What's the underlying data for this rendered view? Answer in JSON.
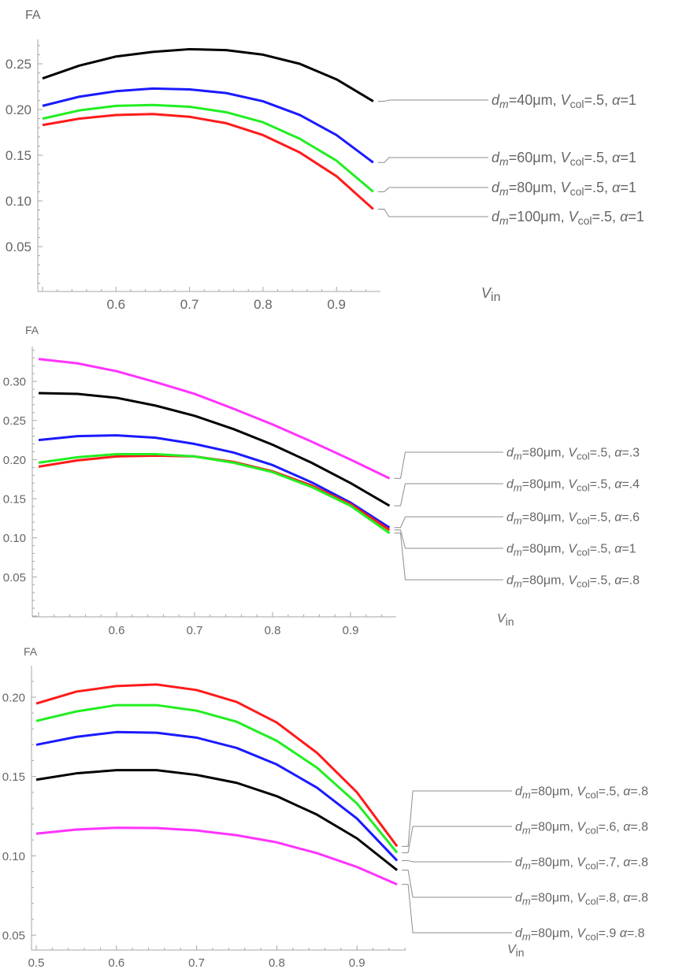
{
  "chart_data": [
    {
      "type": "line",
      "title": "",
      "xlabel": "V_in",
      "ylabel": "FA",
      "xlabel_parts": [
        "V",
        "in"
      ],
      "xlim": [
        0.494,
        0.96
      ],
      "ylim": [
        0.0,
        0.28
      ],
      "xticks": [
        0.6,
        0.7,
        0.8,
        0.9
      ],
      "yticks": [
        0.05,
        0.1,
        0.15,
        0.2,
        0.25
      ],
      "xtick_labels": [
        "0.6",
        "0.7",
        "0.8",
        "0.9"
      ],
      "ytick_labels": [
        "0.05",
        "0.10",
        "0.15",
        "0.20",
        "0.25"
      ],
      "grid": false,
      "legend_placement": "right (line-end labels)",
      "x": [
        0.5,
        0.55,
        0.6,
        0.65,
        0.7,
        0.75,
        0.8,
        0.85,
        0.9,
        0.95
      ],
      "series": [
        {
          "name": "d_m=40μm, V_col=.5, α=1",
          "color": "#000000",
          "label": [
            "d",
            "m",
            "=40μm, ",
            "V",
            "col",
            "=.5, ",
            "α",
            "=1"
          ],
          "values": [
            0.234,
            0.248,
            0.258,
            0.263,
            0.266,
            0.265,
            0.26,
            0.25,
            0.233,
            0.209
          ]
        },
        {
          "name": "d_m=60μm, V_col=.5, α=1",
          "color": "#1a1aff",
          "label": [
            "d",
            "m",
            "=60μm, ",
            "V",
            "col",
            "=.5, ",
            "α",
            "=1"
          ],
          "values": [
            0.204,
            0.214,
            0.22,
            0.223,
            0.222,
            0.218,
            0.209,
            0.194,
            0.172,
            0.142
          ]
        },
        {
          "name": "d_m=80μm, V_col=.5, α=1",
          "color": "#22ee22",
          "label": [
            "d",
            "m",
            "=80μm, ",
            "V",
            "col",
            "=.5, ",
            "α",
            "=1"
          ],
          "values": [
            0.19,
            0.199,
            0.204,
            0.205,
            0.203,
            0.197,
            0.186,
            0.168,
            0.144,
            0.11
          ]
        },
        {
          "name": "d_m=100μm, V_col=.5, α=1",
          "color": "#ff1a1a",
          "label": [
            "d",
            "m",
            "=100μm, ",
            "V",
            "col",
            "=.5, ",
            "α",
            "=1"
          ],
          "values": [
            0.183,
            0.19,
            0.194,
            0.195,
            0.192,
            0.185,
            0.172,
            0.153,
            0.127,
            0.091
          ]
        }
      ]
    },
    {
      "type": "line",
      "title": "",
      "xlabel": "V_in",
      "ylabel": "FA",
      "xlabel_parts": [
        "V",
        "in"
      ],
      "xlim": [
        0.492,
        0.955
      ],
      "ylim": [
        0.0,
        0.345
      ],
      "xticks": [
        0.6,
        0.7,
        0.8,
        0.9
      ],
      "yticks": [
        0.05,
        0.1,
        0.15,
        0.2,
        0.25,
        0.3
      ],
      "xtick_labels": [
        "0.6",
        "0.7",
        "0.8",
        "0.9"
      ],
      "ytick_labels": [
        "0.05",
        "0.10",
        "0.15",
        "0.20",
        "0.25",
        "0.30"
      ],
      "grid": false,
      "legend_placement": "right (line-end labels)",
      "x": [
        0.5,
        0.55,
        0.6,
        0.65,
        0.7,
        0.75,
        0.8,
        0.85,
        0.9,
        0.95
      ],
      "series": [
        {
          "name": "d_m=80μm, V_col=.5, α=.3",
          "color": "#ff33ff",
          "label": [
            "d",
            "m",
            "=80μm, ",
            "V",
            "col",
            "=.5, ",
            "α",
            "=.3"
          ],
          "values": [
            0.3285,
            0.323,
            0.313,
            0.299,
            0.284,
            0.265,
            0.245,
            0.223,
            0.2,
            0.176
          ]
        },
        {
          "name": "d_m=80μm, V_col=.5, α=.4",
          "color": "#000000",
          "label": [
            "d",
            "m",
            "=80μm, ",
            "V",
            "col",
            "=.5, ",
            "α",
            "=.4"
          ],
          "values": [
            0.285,
            0.284,
            0.279,
            0.269,
            0.256,
            0.239,
            0.219,
            0.196,
            0.17,
            0.141
          ]
        },
        {
          "name": "d_m=80μm, V_col=.5, α=.6",
          "color": "#1a1aff",
          "label": [
            "d",
            "m",
            "=80μm, ",
            "V",
            "col",
            "=.5, ",
            "α",
            "=.6"
          ],
          "values": [
            0.225,
            0.23,
            0.231,
            0.228,
            0.22,
            0.209,
            0.193,
            0.171,
            0.145,
            0.113
          ]
        },
        {
          "name": "d_m=80μm, V_col=.5, α=1",
          "color": "#ff1a1a",
          "label": [
            "d",
            "m",
            "=80μm, ",
            "V",
            "col",
            "=.5, ",
            "α",
            "=1"
          ],
          "values": [
            0.191,
            0.199,
            0.204,
            0.205,
            0.204,
            0.197,
            0.185,
            0.167,
            0.143,
            0.11
          ]
        },
        {
          "name": "d_m=80μm, V_col=.5, α=.8",
          "color": "#22ee22",
          "label": [
            "d",
            "m",
            "=80μm, ",
            "V",
            "col",
            "=.5, ",
            "α",
            "=.8"
          ],
          "values": [
            0.196,
            0.203,
            0.207,
            0.207,
            0.204,
            0.196,
            0.184,
            0.165,
            0.141,
            0.106
          ]
        }
      ]
    },
    {
      "type": "line",
      "title": "",
      "xlabel": "V_in",
      "ylabel": "FA",
      "xlabel_parts": [
        "V",
        "in"
      ],
      "xlim": [
        0.494,
        0.96
      ],
      "ylim": [
        0.0405,
        0.22
      ],
      "xticks": [
        0.5,
        0.6,
        0.7,
        0.8,
        0.9
      ],
      "yticks": [
        0.05,
        0.1,
        0.15,
        0.2
      ],
      "xtick_labels": [
        "0.5",
        "0.6",
        "0.7",
        "0.8",
        "0.9"
      ],
      "ytick_labels": [
        "0.05",
        "0.10",
        "0.15",
        "0.20"
      ],
      "grid": false,
      "legend_placement": "right (line-end labels)",
      "x": [
        0.5,
        0.55,
        0.6,
        0.65,
        0.7,
        0.75,
        0.8,
        0.85,
        0.9,
        0.95
      ],
      "series": [
        {
          "name": "d_m=80μm, V_col=.5, α=.8",
          "color": "#ff1a1a",
          "label": [
            "d",
            "m",
            "=80μm, ",
            "V",
            "col",
            "=.5, ",
            "α",
            "=.8"
          ],
          "values": [
            0.196,
            0.2035,
            0.207,
            0.208,
            0.2045,
            0.197,
            0.184,
            0.165,
            0.14,
            0.106
          ]
        },
        {
          "name": "d_m=80μm, V_col=.6, α=.8",
          "color": "#22ee22",
          "label": [
            "d",
            "m",
            "=80μm, ",
            "V",
            "col",
            "=.6, ",
            "α",
            "=.8"
          ],
          "values": [
            0.185,
            0.191,
            0.195,
            0.195,
            0.1915,
            0.1845,
            0.1725,
            0.1556,
            0.133,
            0.102
          ]
        },
        {
          "name": "d_m=80μm, V_col=.7, α=.8",
          "color": "#1a1aff",
          "label": [
            "d",
            "m",
            "=80μm, ",
            "V",
            "col",
            "=.7, ",
            "α",
            "=.8"
          ],
          "values": [
            0.17,
            0.175,
            0.178,
            0.1776,
            0.1745,
            0.168,
            0.1576,
            0.143,
            0.1235,
            0.097
          ]
        },
        {
          "name": "d_m=80μm, V_col=.8, α=.8",
          "color": "#000000",
          "label": [
            "d",
            "m",
            "=80μm, ",
            "V",
            "col",
            "=.8, ",
            "α",
            "=.8"
          ],
          "values": [
            0.148,
            0.152,
            0.154,
            0.154,
            0.151,
            0.146,
            0.1376,
            0.126,
            0.111,
            0.091
          ]
        },
        {
          "name": "d_m=80μm, V_col=.9 α=.8",
          "color": "#ff33ff",
          "label": [
            "d",
            "m",
            "=80μm, ",
            "V",
            "col",
            "=.9 ",
            "α",
            "=.8"
          ],
          "values": [
            0.114,
            0.1166,
            0.1177,
            0.1175,
            0.116,
            0.113,
            0.1085,
            0.1017,
            0.093,
            0.082
          ]
        }
      ]
    }
  ]
}
